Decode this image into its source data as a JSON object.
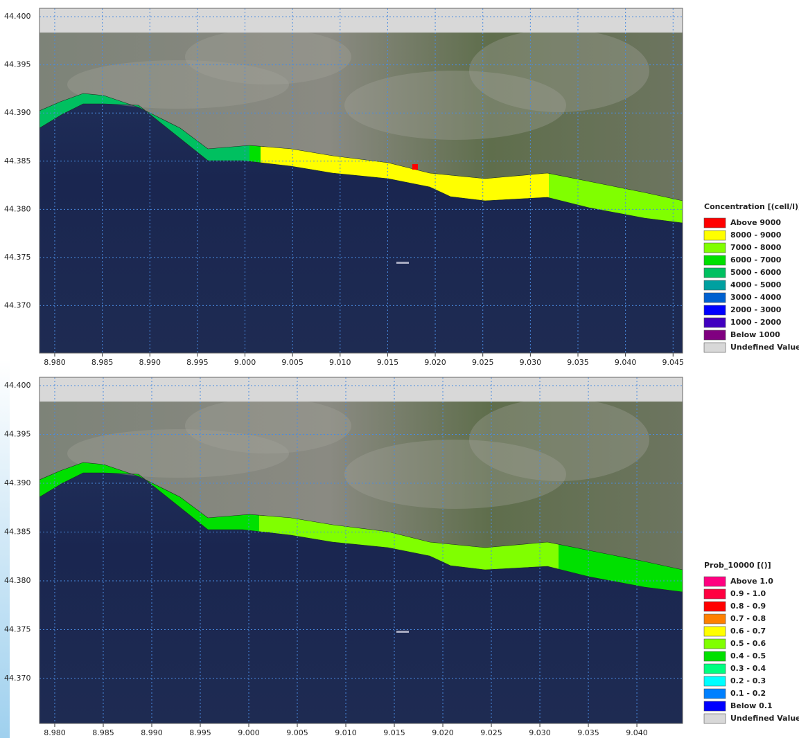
{
  "panels": [
    {
      "xlim": [
        8.9784,
        9.046
      ],
      "ylim": [
        44.36507,
        44.40087
      ],
      "xticks": [
        {
          "value": 8.98,
          "label": "8.980"
        },
        {
          "value": 8.985,
          "label": "8.985"
        },
        {
          "value": 8.99,
          "label": "8.990"
        },
        {
          "value": 8.995,
          "label": "8.995"
        },
        {
          "value": 9.0,
          "label": "9.000"
        },
        {
          "value": 9.005,
          "label": "9.005"
        },
        {
          "value": 9.01,
          "label": "9.010"
        },
        {
          "value": 9.015,
          "label": "9.015"
        },
        {
          "value": 9.02,
          "label": "9.020"
        },
        {
          "value": 9.025,
          "label": "9.025"
        },
        {
          "value": 9.03,
          "label": "9.030"
        },
        {
          "value": 9.035,
          "label": "9.035"
        },
        {
          "value": 9.04,
          "label": "9.040"
        },
        {
          "value": 9.045,
          "label": "9.045"
        }
      ],
      "yticks": [
        {
          "value": 44.4,
          "label": "44.400"
        },
        {
          "value": 44.395,
          "label": "44.395"
        },
        {
          "value": 44.39,
          "label": "44.390"
        },
        {
          "value": 44.385,
          "label": "44.385"
        },
        {
          "value": 44.38,
          "label": "44.380"
        },
        {
          "value": 44.375,
          "label": "44.375"
        },
        {
          "value": 44.37,
          "label": "44.370"
        }
      ],
      "legend": {
        "title": "Concentration [(cell/l)]",
        "items": [
          {
            "label": "Above 9000",
            "color": "#ff0000"
          },
          {
            "label": "8000 - 9000",
            "color": "#ffff00"
          },
          {
            "label": "7000 - 8000",
            "color": "#80ff00"
          },
          {
            "label": "6000 - 7000",
            "color": "#00e000"
          },
          {
            "label": "5000 - 6000",
            "color": "#00c060"
          },
          {
            "label": "4000 - 5000",
            "color": "#00a0a0"
          },
          {
            "label": "3000 - 4000",
            "color": "#0060d0"
          },
          {
            "label": "2000 - 3000",
            "color": "#0000ff"
          },
          {
            "label": "1000 - 2000",
            "color": "#4000c0"
          },
          {
            "label": "Below 1000",
            "color": "#800080"
          },
          {
            "label": "Undefined Value",
            "color": "#d8d8d8"
          }
        ]
      }
    },
    {
      "xlim": [
        8.97843,
        9.04471
      ],
      "ylim": [
        44.36539,
        44.40085
      ],
      "xticks": [
        {
          "value": 8.98,
          "label": "8.980"
        },
        {
          "value": 8.985,
          "label": "8.985"
        },
        {
          "value": 8.99,
          "label": "8.990"
        },
        {
          "value": 8.995,
          "label": "8.995"
        },
        {
          "value": 9.0,
          "label": "9.000"
        },
        {
          "value": 9.005,
          "label": "9.005"
        },
        {
          "value": 9.01,
          "label": "9.010"
        },
        {
          "value": 9.015,
          "label": "9.015"
        },
        {
          "value": 9.02,
          "label": "9.020"
        },
        {
          "value": 9.025,
          "label": "9.025"
        },
        {
          "value": 9.03,
          "label": "9.030"
        },
        {
          "value": 9.035,
          "label": "9.035"
        },
        {
          "value": 9.04,
          "label": "9.040"
        }
      ],
      "yticks": [
        {
          "value": 44.4,
          "label": "44.400"
        },
        {
          "value": 44.395,
          "label": "44.395"
        },
        {
          "value": 44.39,
          "label": "44.390"
        },
        {
          "value": 44.385,
          "label": "44.385"
        },
        {
          "value": 44.38,
          "label": "44.380"
        },
        {
          "value": 44.375,
          "label": "44.375"
        },
        {
          "value": 44.37,
          "label": "44.370"
        }
      ],
      "legend": {
        "title": "Prob_10000 [()]",
        "items": [
          {
            "label": "Above 1.0",
            "color": "#ff0080"
          },
          {
            "label": "0.9 - 1.0",
            "color": "#ff0040"
          },
          {
            "label": "0.8 - 0.9",
            "color": "#ff0000"
          },
          {
            "label": "0.7 - 0.8",
            "color": "#ff8000"
          },
          {
            "label": "0.6 - 0.7",
            "color": "#ffff00"
          },
          {
            "label": "0.5 - 0.6",
            "color": "#80ff00"
          },
          {
            "label": "0.4 - 0.5",
            "color": "#00e000"
          },
          {
            "label": "0.3 - 0.4",
            "color": "#00ff80"
          },
          {
            "label": "0.2 - 0.3",
            "color": "#00ffff"
          },
          {
            "label": "0.1 - 0.2",
            "color": "#0080ff"
          },
          {
            "label": "Below 0.1",
            "color": "#0000ff"
          },
          {
            "label": "Undefined Value",
            "color": "#d8d8d8"
          }
        ]
      }
    }
  ]
}
